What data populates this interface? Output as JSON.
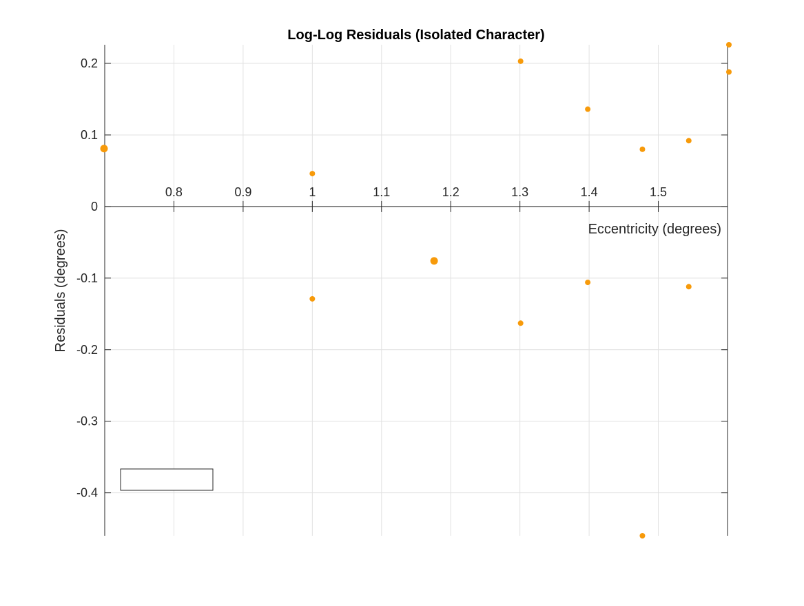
{
  "chart_data": {
    "type": "scatter",
    "title": "Log-Log Residuals (Isolated Character)",
    "xlabel": "Eccentricity (degrees)",
    "ylabel": "Residuals (degrees)",
    "xlim": [
      0.7,
      1.6
    ],
    "ylim": [
      -0.46,
      0.226
    ],
    "xticks": [
      0.8,
      0.9,
      1.0,
      1.1,
      1.2,
      1.3,
      1.4,
      1.5
    ],
    "xtick_labels": [
      "0.8",
      "0.9",
      "1",
      "1.1",
      "1.2",
      "1.3",
      "1.4",
      "1.5"
    ],
    "yticks": [
      0.2,
      0.1,
      0,
      -0.1,
      -0.2,
      -0.3,
      -0.4
    ],
    "ytick_labels": [
      "0.2",
      "0.1",
      "0",
      "-0.1",
      "-0.2",
      "-0.3",
      "-0.4"
    ],
    "grid": true,
    "axis_location": "origin",
    "legend": "empty box, bottom-left",
    "marker_color": "#f79a0a",
    "series": [
      {
        "points": [
          {
            "x": 0.699,
            "y": 0.081,
            "size": "large"
          },
          {
            "x": 1.0,
            "y": 0.046,
            "size": "small"
          },
          {
            "x": 1.0,
            "y": -0.129,
            "size": "small"
          },
          {
            "x": 1.176,
            "y": -0.076,
            "size": "large"
          },
          {
            "x": 1.301,
            "y": 0.203,
            "size": "small"
          },
          {
            "x": 1.301,
            "y": -0.163,
            "size": "small"
          },
          {
            "x": 1.398,
            "y": 0.136,
            "size": "small"
          },
          {
            "x": 1.398,
            "y": -0.106,
            "size": "small"
          },
          {
            "x": 1.477,
            "y": 0.08,
            "size": "small"
          },
          {
            "x": 1.477,
            "y": -0.46,
            "size": "small"
          },
          {
            "x": 1.544,
            "y": 0.092,
            "size": "small"
          },
          {
            "x": 1.544,
            "y": -0.112,
            "size": "small"
          },
          {
            "x": 1.602,
            "y": 0.226,
            "size": "small"
          },
          {
            "x": 1.602,
            "y": 0.188,
            "size": "small"
          }
        ]
      }
    ]
  }
}
